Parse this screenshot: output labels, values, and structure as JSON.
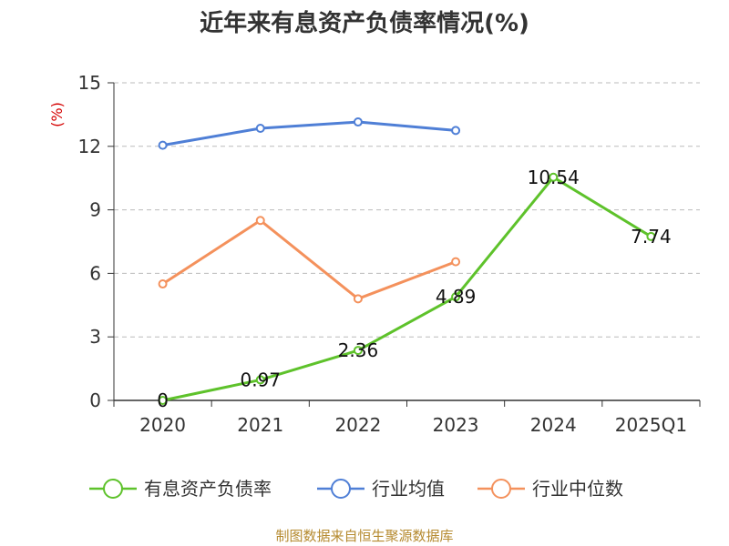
{
  "chart_data": {
    "type": "line",
    "title": "近年来有息资产负债率情况(%)",
    "ylabel": "(%)",
    "xlabel": "",
    "categories": [
      "2020",
      "2021",
      "2022",
      "2023",
      "2024",
      "2025Q1"
    ],
    "ylim": [
      0,
      15
    ],
    "yticks": [
      "0",
      "3",
      "6",
      "9",
      "12",
      "15"
    ],
    "grid": true,
    "legend_position": "bottom",
    "series": [
      {
        "name": "有息资产负债率",
        "color": "#5ec22b",
        "values": [
          0,
          0.97,
          2.36,
          4.89,
          10.54,
          7.74
        ],
        "labels": [
          "0",
          "0.97",
          "2.36",
          "4.89",
          "10.54",
          "7.74"
        ]
      },
      {
        "name": "行业均值",
        "color": "#4f7fd6",
        "values": [
          12.05,
          12.85,
          13.15,
          12.75,
          null,
          null
        ]
      },
      {
        "name": "行业中位数",
        "color": "#f4915c",
        "values": [
          5.5,
          8.5,
          4.8,
          6.55,
          null,
          null
        ]
      }
    ],
    "source": "制图数据来自恒生聚源数据库"
  }
}
